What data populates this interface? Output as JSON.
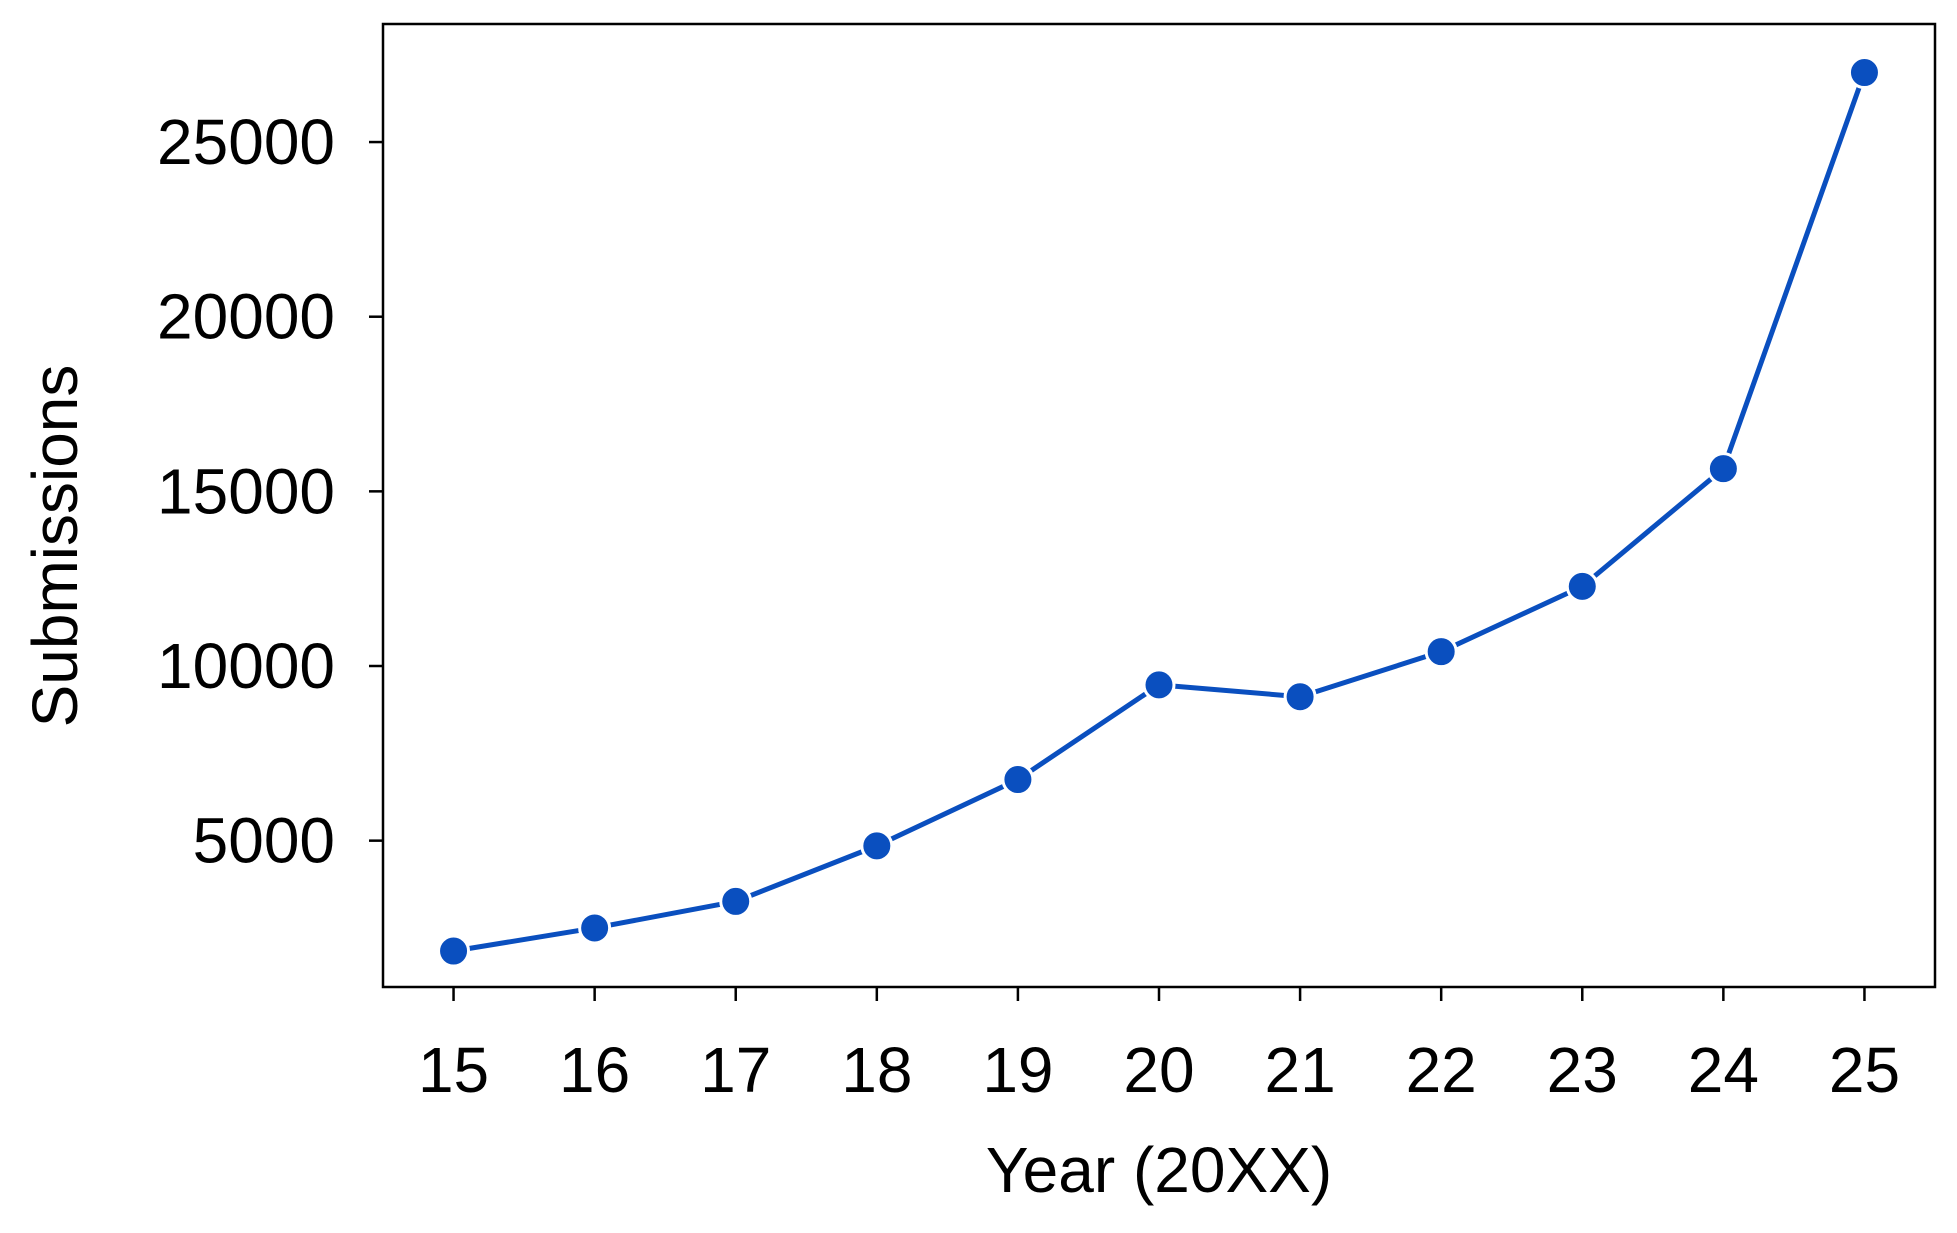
{
  "chart_data": {
    "type": "line",
    "title": "",
    "xlabel": "Year (20XX)",
    "ylabel": "Submissions",
    "x": [
      15,
      16,
      17,
      18,
      19,
      20,
      21,
      22,
      23,
      24,
      25
    ],
    "x_tick_labels": [
      "15",
      "16",
      "17",
      "18",
      "19",
      "20",
      "21",
      "22",
      "23",
      "24",
      "25"
    ],
    "y_ticks": [
      5000,
      10000,
      15000,
      20000,
      25000
    ],
    "y_tick_labels": [
      "5000",
      "10000",
      "15000",
      "20000",
      "25000"
    ],
    "xlim": [
      14.5,
      25.5
    ],
    "ylim": [
      810,
      28380
    ],
    "grid": false,
    "series": [
      {
        "color": "#0a4fbf",
        "marker": "circle",
        "values": [
          1840,
          2500,
          3260,
          4850,
          6750,
          9460,
          9120,
          10410,
          12280,
          15650,
          26990
        ]
      }
    ]
  }
}
